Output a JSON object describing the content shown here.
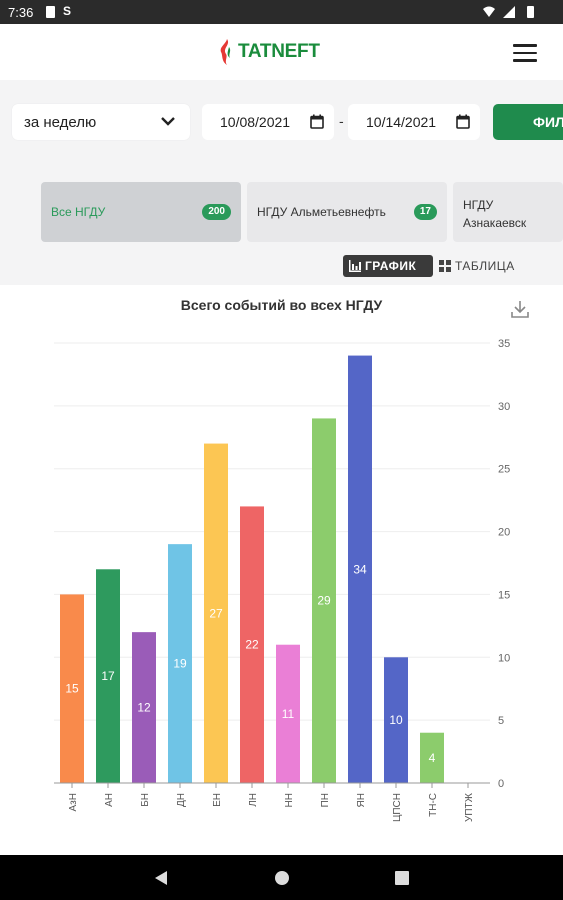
{
  "status_bar": {
    "time": "7:36",
    "s_icon": "S"
  },
  "header": {
    "logo_text": "TATNEFT"
  },
  "filters": {
    "period": "за неделю",
    "date_from": "10/08/2021",
    "date_to": "10/14/2021",
    "separator": "-",
    "apply_label": "ФИЛ"
  },
  "tabs": [
    {
      "label": "Все НГДУ",
      "count": "200"
    },
    {
      "label": "НГДУ Альметьевнефть",
      "count": "17"
    },
    {
      "label_line1": "НГДУ",
      "label_line2": "Азнакаевск"
    }
  ],
  "view_toggle": {
    "chart_label": "ГРАФИК",
    "table_label": "ТАБЛИЦА"
  },
  "chart_data": {
    "type": "bar",
    "title": "Всего событий во всех НГДУ",
    "categories": [
      "АзН",
      "АН",
      "БН",
      "ДН",
      "ЕН",
      "ЛН",
      "НН",
      "ПН",
      "ЯН",
      "ЦПСН",
      "ТН-С",
      "УПТЖ"
    ],
    "values": [
      15,
      17,
      12,
      19,
      27,
      22,
      11,
      29,
      34,
      10,
      4,
      0
    ],
    "colors": [
      "#f98a4b",
      "#2e9a5e",
      "#9a5cb8",
      "#6fc4e6",
      "#fcc653",
      "#ee6565",
      "#ea7fd6",
      "#8ccc6c",
      "#5466c7",
      "#5466c7",
      "#8ccc6c",
      "#8ccc6c"
    ],
    "ylim": [
      0,
      35
    ],
    "yticks": [
      0,
      5,
      10,
      15,
      20,
      25,
      30,
      35
    ],
    "y_axis_side": "right",
    "grid": true
  }
}
